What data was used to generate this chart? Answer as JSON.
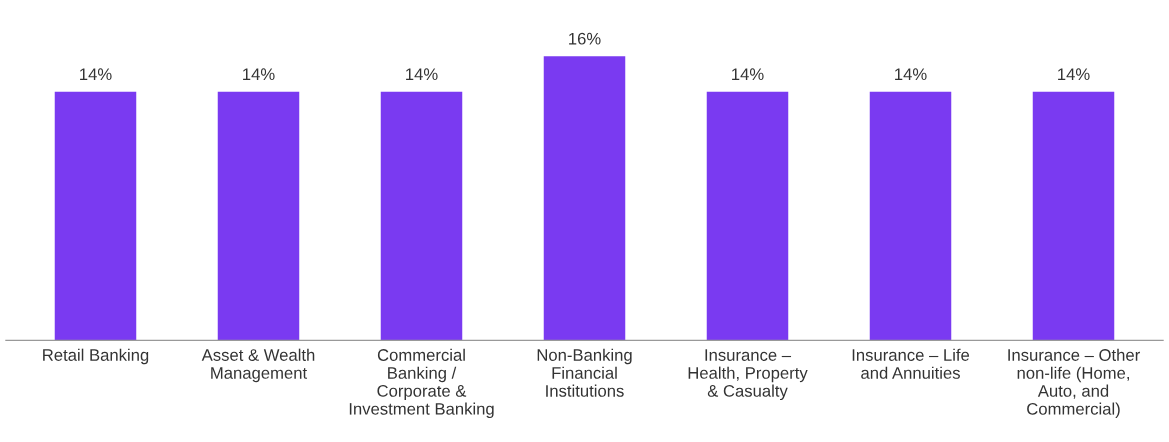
{
  "chart_data": {
    "type": "bar",
    "categories": [
      "Retail Banking",
      "Asset & Wealth\nManagement",
      "Commercial\nBanking /\nCorporate &\nInvestment Banking",
      "Non-Banking\nFinancial\nInstitutions",
      "Insurance –\nHealth, Property\n& Casualty",
      "Insurance – Life\nand Annuities",
      "Insurance – Other\nnon-life (Home,\nAuto, and\nCommercial)"
    ],
    "values": [
      14,
      14,
      14,
      16,
      14,
      14,
      14
    ],
    "value_labels": [
      "14%",
      "14%",
      "14%",
      "16%",
      "14%",
      "14%",
      "14%"
    ],
    "color": "#7a3af1",
    "grid": false,
    "legend": false
  }
}
